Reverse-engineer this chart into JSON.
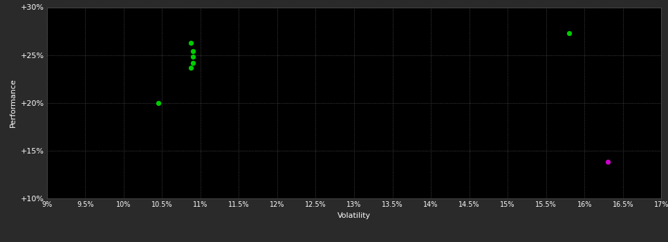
{
  "background_color": "#2a2a2a",
  "plot_bg_color": "#000000",
  "grid_color": "#555555",
  "text_color": "#ffffff",
  "xlabel": "Volatility",
  "ylabel": "Performance",
  "x_min": 0.09,
  "x_max": 0.17,
  "y_min": 0.1,
  "y_max": 0.3,
  "x_ticks": [
    0.09,
    0.095,
    0.1,
    0.105,
    0.11,
    0.115,
    0.12,
    0.125,
    0.13,
    0.135,
    0.14,
    0.145,
    0.15,
    0.155,
    0.16,
    0.165,
    0.17
  ],
  "y_ticks": [
    0.1,
    0.15,
    0.2,
    0.25,
    0.3
  ],
  "y_tick_labels": [
    "+10%",
    "+15%",
    "+20%",
    "+25%",
    "+30%"
  ],
  "x_tick_labels": [
    "9%",
    "9.5%",
    "10%",
    "10.5%",
    "11%",
    "11.5%",
    "12%",
    "12.5%",
    "13%",
    "13.5%",
    "14%",
    "14.5%",
    "15%",
    "15.5%",
    "16%",
    "16.5%",
    "17%"
  ],
  "green_points": [
    [
      0.1088,
      0.263
    ],
    [
      0.109,
      0.254
    ],
    [
      0.109,
      0.248
    ],
    [
      0.109,
      0.242
    ],
    [
      0.1088,
      0.237
    ],
    [
      0.1045,
      0.2
    ],
    [
      0.158,
      0.273
    ]
  ],
  "magenta_points": [
    [
      0.163,
      0.138
    ]
  ],
  "green_color": "#00cc00",
  "magenta_color": "#cc00cc",
  "marker_size": 18,
  "figsize": [
    9.66,
    3.5
  ],
  "dpi": 100
}
